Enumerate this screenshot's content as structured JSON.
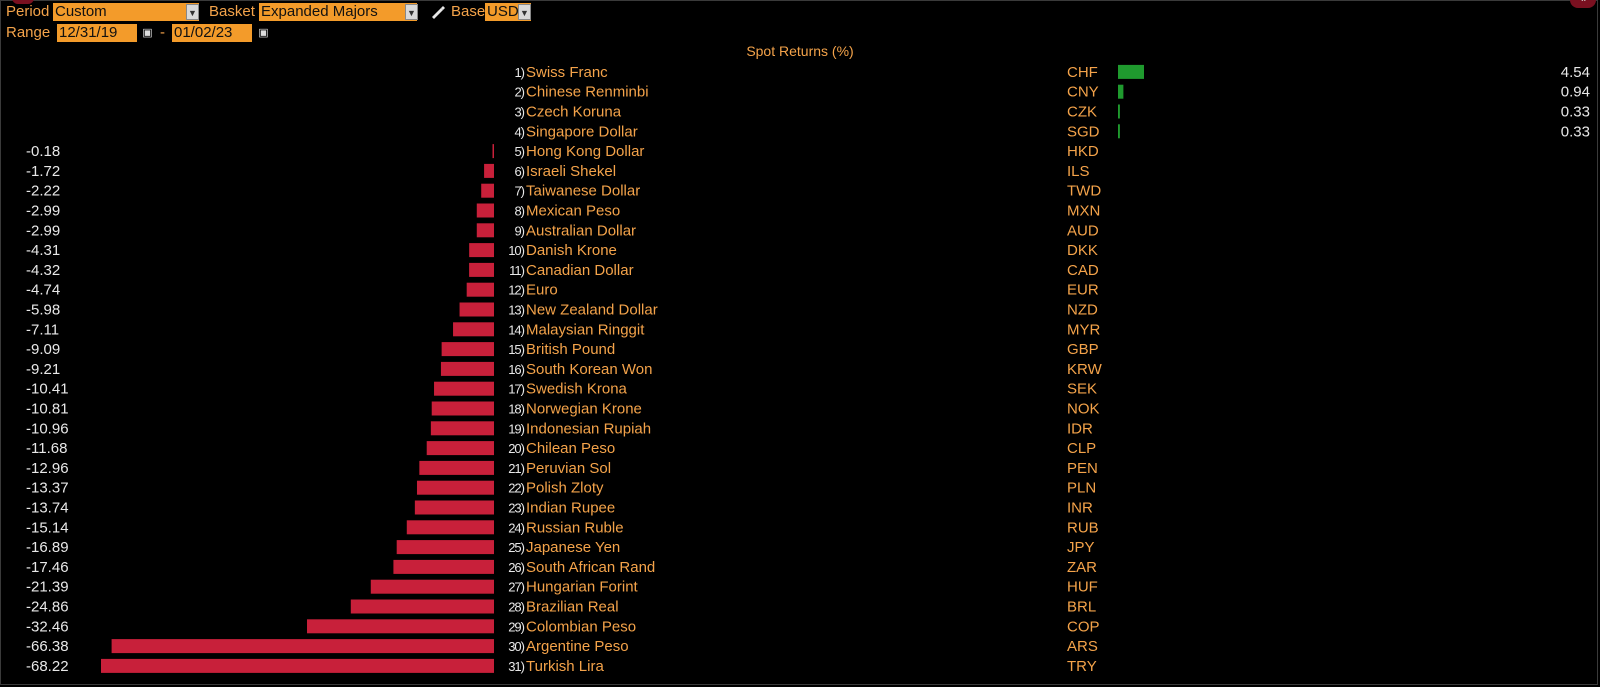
{
  "header": {
    "period_label": "Period",
    "period_value": "Custom",
    "basket_label": "Basket",
    "basket_value": "Expanded Majors",
    "base_label": "Base",
    "base_value": "USD",
    "range_label": "Range",
    "range_start": "12/31/19",
    "range_sep": "-",
    "range_end": "01/02/23"
  },
  "chart_data": {
    "type": "bar",
    "title": "Spot Returns (%)",
    "xlim": [
      -68.22,
      4.54
    ],
    "bar_colors": {
      "positive": "#1f9a2e",
      "negative": "#c8203a"
    },
    "rows": [
      {
        "rank": "1)",
        "name": "Swiss Franc",
        "ticker": "CHF",
        "value": 4.54,
        "label": "4.54"
      },
      {
        "rank": "2)",
        "name": "Chinese Renminbi",
        "ticker": "CNY",
        "value": 0.94,
        "label": "0.94"
      },
      {
        "rank": "3)",
        "name": "Czech Koruna",
        "ticker": "CZK",
        "value": 0.33,
        "label": "0.33"
      },
      {
        "rank": "4)",
        "name": "Singapore Dollar",
        "ticker": "SGD",
        "value": 0.33,
        "label": "0.33"
      },
      {
        "rank": "5)",
        "name": "Hong Kong Dollar",
        "ticker": "HKD",
        "value": -0.18,
        "label": "-0.18"
      },
      {
        "rank": "6)",
        "name": "Israeli Shekel",
        "ticker": "ILS",
        "value": -1.72,
        "label": "-1.72"
      },
      {
        "rank": "7)",
        "name": "Taiwanese Dollar",
        "ticker": "TWD",
        "value": -2.22,
        "label": "-2.22"
      },
      {
        "rank": "8)",
        "name": "Mexican Peso",
        "ticker": "MXN",
        "value": -2.99,
        "label": "-2.99"
      },
      {
        "rank": "9)",
        "name": "Australian Dollar",
        "ticker": "AUD",
        "value": -2.99,
        "label": "-2.99"
      },
      {
        "rank": "10)",
        "name": "Danish Krone",
        "ticker": "DKK",
        "value": -4.31,
        "label": "-4.31"
      },
      {
        "rank": "11)",
        "name": "Canadian Dollar",
        "ticker": "CAD",
        "value": -4.32,
        "label": "-4.32"
      },
      {
        "rank": "12)",
        "name": "Euro",
        "ticker": "EUR",
        "value": -4.74,
        "label": "-4.74"
      },
      {
        "rank": "13)",
        "name": "New Zealand Dollar",
        "ticker": "NZD",
        "value": -5.98,
        "label": "-5.98"
      },
      {
        "rank": "14)",
        "name": "Malaysian Ringgit",
        "ticker": "MYR",
        "value": -7.11,
        "label": "-7.11"
      },
      {
        "rank": "15)",
        "name": "British Pound",
        "ticker": "GBP",
        "value": -9.09,
        "label": "-9.09"
      },
      {
        "rank": "16)",
        "name": "South Korean Won",
        "ticker": "KRW",
        "value": -9.21,
        "label": "-9.21"
      },
      {
        "rank": "17)",
        "name": "Swedish Krona",
        "ticker": "SEK",
        "value": -10.41,
        "label": "-10.41"
      },
      {
        "rank": "18)",
        "name": "Norwegian Krone",
        "ticker": "NOK",
        "value": -10.81,
        "label": "-10.81"
      },
      {
        "rank": "19)",
        "name": "Indonesian Rupiah",
        "ticker": "IDR",
        "value": -10.96,
        "label": "-10.96"
      },
      {
        "rank": "20)",
        "name": "Chilean Peso",
        "ticker": "CLP",
        "value": -11.68,
        "label": "-11.68"
      },
      {
        "rank": "21)",
        "name": "Peruvian Sol",
        "ticker": "PEN",
        "value": -12.96,
        "label": "-12.96"
      },
      {
        "rank": "22)",
        "name": "Polish Zloty",
        "ticker": "PLN",
        "value": -13.37,
        "label": "-13.37"
      },
      {
        "rank": "23)",
        "name": "Indian Rupee",
        "ticker": "INR",
        "value": -13.74,
        "label": "-13.74"
      },
      {
        "rank": "24)",
        "name": "Russian Ruble",
        "ticker": "RUB",
        "value": -15.14,
        "label": "-15.14"
      },
      {
        "rank": "25)",
        "name": "Japanese Yen",
        "ticker": "JPY",
        "value": -16.89,
        "label": "-16.89"
      },
      {
        "rank": "26)",
        "name": "South African Rand",
        "ticker": "ZAR",
        "value": -17.46,
        "label": "-17.46"
      },
      {
        "rank": "27)",
        "name": "Hungarian Forint",
        "ticker": "HUF",
        "value": -21.39,
        "label": "-21.39"
      },
      {
        "rank": "28)",
        "name": "Brazilian Real",
        "ticker": "BRL",
        "value": -24.86,
        "label": "-24.86"
      },
      {
        "rank": "29)",
        "name": "Colombian Peso",
        "ticker": "COP",
        "value": -32.46,
        "label": "-32.46"
      },
      {
        "rank": "30)",
        "name": "Argentine Peso",
        "ticker": "ARS",
        "value": -66.38,
        "label": "-66.38"
      },
      {
        "rank": "31)",
        "name": "Turkish Lira",
        "ticker": "TRY",
        "value": -68.22,
        "label": "-68.22"
      }
    ]
  }
}
